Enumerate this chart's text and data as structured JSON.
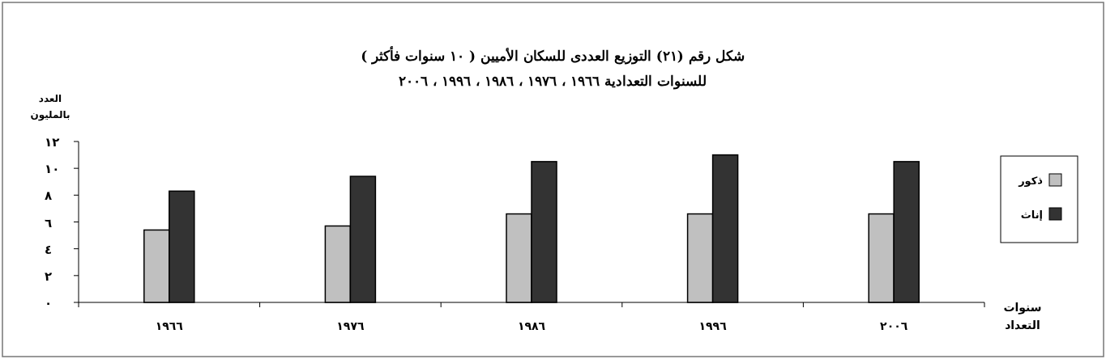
{
  "chart_data": {
    "type": "bar",
    "title": "شكل رقم (٢١) التوزيع العددى للسكان الأميين ( ١٠ سنوات فأكثر )",
    "subtitle": "للسنوات التعدادية ١٩٦٦ ، ١٩٧٦ ، ١٩٨٦ ، ١٩٩٦ ، ٢٠٠٦",
    "xlabel": "سنوات التعداد",
    "ylabel": "العدد بالمليون",
    "categories": [
      "١٩٦٦",
      "١٩٧٦",
      "١٩٨٦",
      "١٩٩٦",
      "٢٠٠٦"
    ],
    "series": [
      {
        "name": "ذكور",
        "color": "#c0c0c0",
        "values": [
          5.4,
          5.7,
          6.6,
          6.6,
          6.6
        ]
      },
      {
        "name": "إناث",
        "color": "#333333",
        "values": [
          8.3,
          9.4,
          10.5,
          11.0,
          10.5
        ]
      }
    ],
    "ylim": [
      0,
      12
    ],
    "yticks": [
      {
        "value": 0,
        "label": "٠"
      },
      {
        "value": 2,
        "label": "٢"
      },
      {
        "value": 4,
        "label": "٤"
      },
      {
        "value": 6,
        "label": "٦"
      },
      {
        "value": 8,
        "label": "٨"
      },
      {
        "value": 10,
        "label": "١٠"
      },
      {
        "value": 12,
        "label": "١٢"
      }
    ],
    "grid": false,
    "legend": "right"
  }
}
